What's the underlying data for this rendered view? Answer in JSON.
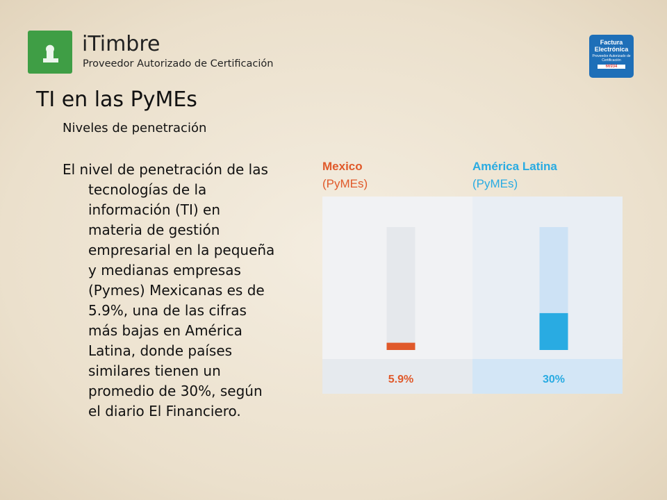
{
  "header": {
    "brand": "iTimbre",
    "tagline": "Proveedor Autorizado de Certificación"
  },
  "badge": {
    "title": "Factura Electrónica",
    "subtitle": "Proveedor Autorizado de Certificación",
    "number": "66934"
  },
  "title": "TI en las PyMEs",
  "subtitle": "Niveles de penetración",
  "body": {
    "lines": [
      "El nivel de penetración de las",
      "tecnologías de la",
      "información (TI) en",
      "materia de gestión",
      "empresarial en la pequeña",
      "y medianas empresas",
      "(Pymes) Mexicanas es de",
      "5.9%, una de las cifras",
      "más bajas en América",
      "Latina, donde países",
      "similares tienen un",
      "promedio de 30%, según",
      "el diario El Financiero."
    ]
  },
  "chart_data": {
    "type": "bar",
    "categories": [
      "Mexico",
      "América Latina"
    ],
    "category_notes": [
      "(PyMEs)",
      "(PyMEs)"
    ],
    "values": [
      5.9,
      30
    ],
    "value_labels": [
      "5.9%",
      "30%"
    ],
    "colors": [
      "#e0592a",
      "#29abe2"
    ],
    "ylim": [
      0,
      100
    ]
  }
}
